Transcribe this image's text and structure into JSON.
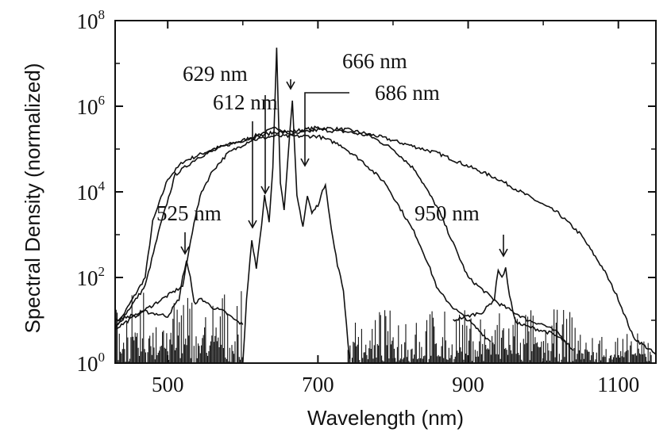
{
  "chart_data": {
    "type": "line",
    "title": "",
    "xlabel": "Wavelength (nm)",
    "ylabel": "Spectral Density (normalized)",
    "xlim": [
      430,
      1150
    ],
    "ylim_log10": [
      0,
      8
    ],
    "y_scale": "log",
    "grid": false,
    "x_ticks": [
      {
        "value": 500,
        "label": "500"
      },
      {
        "value": 700,
        "label": "700"
      },
      {
        "value": 900,
        "label": "900"
      },
      {
        "value": 1100,
        "label": "1100"
      }
    ],
    "y_ticks": [
      {
        "exp": 0,
        "base": "10",
        "sup": "0"
      },
      {
        "exp": 2,
        "base": "10",
        "sup": "2"
      },
      {
        "exp": 4,
        "base": "10",
        "sup": "4"
      },
      {
        "exp": 6,
        "base": "10",
        "sup": "6"
      },
      {
        "exp": 8,
        "base": "10",
        "sup": "8"
      }
    ],
    "annotations": [
      {
        "text": "629 nm",
        "x": 629
      },
      {
        "text": "612 nm",
        "x": 612
      },
      {
        "text": "666 nm",
        "x": 666
      },
      {
        "text": "686 nm",
        "x": 686
      },
      {
        "text": "525 nm",
        "x": 525
      },
      {
        "text": "950 nm",
        "x": 950
      }
    ],
    "series": [
      {
        "x": [
          430,
          470,
          480,
          500,
          520,
          560,
          600,
          630,
          645,
          660,
          700,
          740,
          780,
          820,
          860,
          900,
          940,
          980,
          1020,
          1050,
          1080,
          1100,
          1120,
          1150
        ],
        "log10_y": [
          0.8,
          2.0,
          3.3,
          4.3,
          4.7,
          5.0,
          5.2,
          5.4,
          5.5,
          5.4,
          5.5,
          5.45,
          5.3,
          5.1,
          4.9,
          4.6,
          4.3,
          3.9,
          3.5,
          3.0,
          2.2,
          1.5,
          0.6,
          0.2
        ]
      },
      {
        "x": [
          430,
          470,
          490,
          510,
          540,
          580,
          620,
          645,
          670,
          700,
          740,
          770,
          800,
          830,
          860,
          880,
          900,
          940,
          980,
          1000,
          1020,
          1040
        ],
        "log10_y": [
          0.8,
          1.8,
          3.2,
          4.4,
          4.8,
          5.1,
          5.3,
          5.4,
          5.35,
          5.45,
          5.4,
          5.3,
          5.0,
          4.5,
          3.6,
          2.8,
          2.0,
          1.4,
          1.0,
          0.9,
          0.7,
          0.3
        ]
      },
      {
        "x": [
          430,
          520,
          526,
          535,
          545,
          560,
          580,
          610,
          640,
          660,
          700,
          730,
          760,
          790,
          810,
          830,
          845,
          860,
          880,
          900,
          930
        ],
        "log10_y": [
          0.8,
          1.8,
          2.4,
          3.3,
          4.0,
          4.5,
          4.9,
          5.2,
          5.3,
          5.3,
          5.3,
          5.1,
          4.7,
          4.2,
          3.6,
          3.0,
          2.4,
          1.7,
          1.3,
          1.0,
          0.5
        ]
      },
      {
        "x": [
          600,
          605,
          612,
          618,
          625,
          629,
          635,
          640,
          645,
          650,
          655,
          660,
          666,
          672,
          680,
          686,
          692,
          700,
          710,
          718,
          726,
          734,
          742
        ],
        "log10_y": [
          0.0,
          1.5,
          2.9,
          2.2,
          3.2,
          3.9,
          3.3,
          4.6,
          7.4,
          4.2,
          3.6,
          4.8,
          6.1,
          3.9,
          3.2,
          3.9,
          3.5,
          3.7,
          4.2,
          3.1,
          2.3,
          1.7,
          0.1
        ]
      },
      {
        "x": [
          430,
          470,
          500,
          515,
          520,
          525,
          530,
          535,
          545,
          560,
          575,
          590,
          600
        ],
        "log10_y": [
          1.0,
          1.2,
          1.1,
          1.5,
          2.0,
          2.4,
          2.0,
          1.4,
          1.5,
          1.3,
          1.2,
          1.0,
          0.9
        ]
      },
      {
        "x": [
          880,
          900,
          920,
          935,
          940,
          945,
          950,
          955,
          962,
          970,
          990,
          1010,
          1030
        ],
        "log10_y": [
          1.0,
          1.1,
          1.2,
          1.5,
          2.2,
          2.0,
          2.2,
          1.6,
          1.0,
          0.9,
          0.8,
          0.7,
          0.5
        ]
      }
    ]
  }
}
